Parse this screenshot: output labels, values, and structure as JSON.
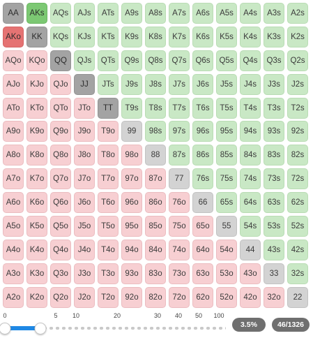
{
  "grid": {
    "rows": [
      [
        "AA",
        "AKs",
        "AQs",
        "AJs",
        "ATs",
        "A9s",
        "A8s",
        "A7s",
        "A6s",
        "A5s",
        "A4s",
        "A3s",
        "A2s"
      ],
      [
        "AKo",
        "KK",
        "KQs",
        "KJs",
        "KTs",
        "K9s",
        "K8s",
        "K7s",
        "K6s",
        "K5s",
        "K4s",
        "K3s",
        "K2s"
      ],
      [
        "AQo",
        "KQo",
        "QQ",
        "QJs",
        "QTs",
        "Q9s",
        "Q8s",
        "Q7s",
        "Q6s",
        "Q5s",
        "Q4s",
        "Q3s",
        "Q2s"
      ],
      [
        "AJo",
        "KJo",
        "QJo",
        "JJ",
        "JTs",
        "J9s",
        "J8s",
        "J7s",
        "J6s",
        "J5s",
        "J4s",
        "J3s",
        "J2s"
      ],
      [
        "ATo",
        "KTo",
        "QTo",
        "JTo",
        "TT",
        "T9s",
        "T8s",
        "T7s",
        "T6s",
        "T5s",
        "T4s",
        "T3s",
        "T2s"
      ],
      [
        "A9o",
        "K9o",
        "Q9o",
        "J9o",
        "T9o",
        "99",
        "98s",
        "97s",
        "96s",
        "95s",
        "94s",
        "93s",
        "92s"
      ],
      [
        "A8o",
        "K8o",
        "Q8o",
        "J8o",
        "T8o",
        "98o",
        "88",
        "87s",
        "86s",
        "85s",
        "84s",
        "83s",
        "82s"
      ],
      [
        "A7o",
        "K7o",
        "Q7o",
        "J7o",
        "T7o",
        "97o",
        "87o",
        "77",
        "76s",
        "75s",
        "74s",
        "73s",
        "72s"
      ],
      [
        "A6o",
        "K6o",
        "Q6o",
        "J6o",
        "T6o",
        "96o",
        "86o",
        "76o",
        "66",
        "65s",
        "64s",
        "63s",
        "62s"
      ],
      [
        "A5o",
        "K5o",
        "Q5o",
        "J5o",
        "T5o",
        "95o",
        "85o",
        "75o",
        "65o",
        "55",
        "54s",
        "53s",
        "52s"
      ],
      [
        "A4o",
        "K4o",
        "Q4o",
        "J4o",
        "T4o",
        "94o",
        "84o",
        "74o",
        "64o",
        "54o",
        "44",
        "43s",
        "42s"
      ],
      [
        "A3o",
        "K3o",
        "Q3o",
        "J3o",
        "T3o",
        "93o",
        "83o",
        "73o",
        "63o",
        "53o",
        "43o",
        "33",
        "32s"
      ],
      [
        "A2o",
        "K2o",
        "Q2o",
        "J2o",
        "T2o",
        "92o",
        "82o",
        "72o",
        "62o",
        "52o",
        "42o",
        "32o",
        "22"
      ]
    ],
    "selected": [
      "AA",
      "AKs",
      "AKo",
      "KK",
      "QQ",
      "JJ",
      "TT"
    ]
  },
  "slider": {
    "tick_labels": [
      "0",
      "5",
      "10",
      "20",
      "30",
      "40",
      "50",
      "100"
    ],
    "range_start": 0,
    "range_end": 3.5
  },
  "stats": {
    "percent": "3.5%",
    "combos": "46/1326"
  },
  "colors": {
    "suited": "#c9e8c5",
    "offsuit": "#f7cfd2",
    "pair": "#d3d3d3",
    "suited_selected": "#7cc873",
    "offsuit_selected": "#e57373",
    "pair_selected": "#a3a3a3",
    "slider_fill": "#1e88e5",
    "pill": "#6f6f6f"
  }
}
